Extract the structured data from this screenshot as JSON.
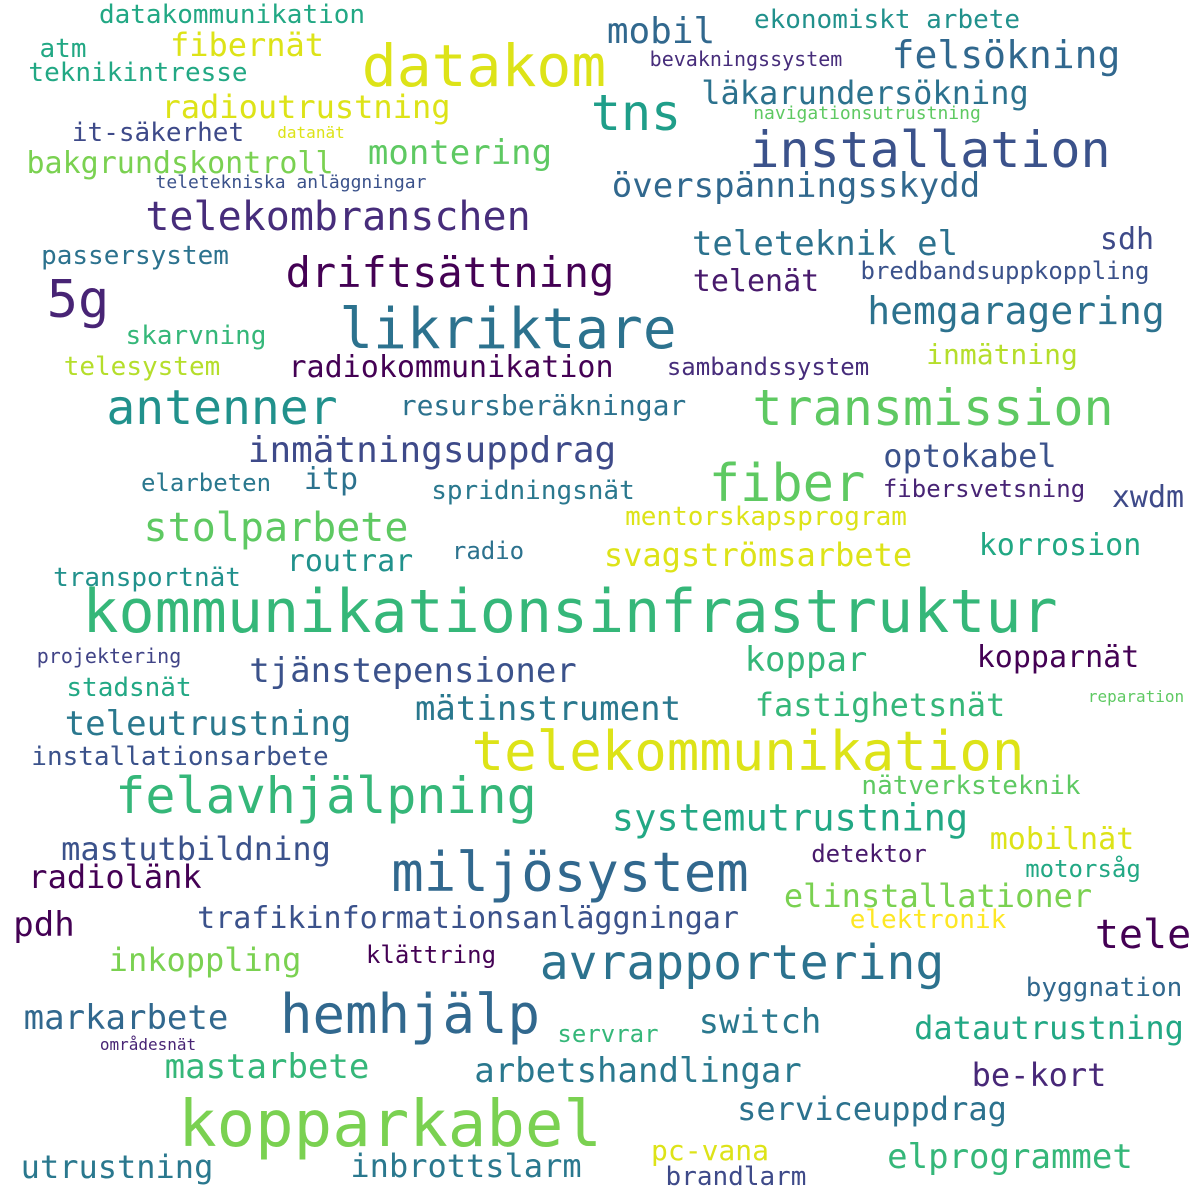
{
  "words": [
    {
      "text": "kommunikationsinfrastruktur",
      "color": "#35b779"
    },
    {
      "text": "kopparkabel",
      "color": "#7ad151"
    },
    {
      "text": "likriktare",
      "color": "#2c728e"
    },
    {
      "text": "telekommunikation",
      "color": "#dde318"
    },
    {
      "text": "datakom",
      "color": "#dde318"
    },
    {
      "text": "miljösystem",
      "color": "#31688e"
    },
    {
      "text": "felavhjälpning",
      "color": "#35b779"
    },
    {
      "text": "hemhjälp",
      "color": "#31688e"
    },
    {
      "text": "installation",
      "color": "#3b528b"
    },
    {
      "text": "transmission",
      "color": "#5ec962"
    },
    {
      "text": "antenner",
      "color": "#21918c"
    },
    {
      "text": "avrapportering",
      "color": "#2c728e"
    },
    {
      "text": "fiber",
      "color": "#5ec962"
    },
    {
      "text": "driftsättning",
      "color": "#440154"
    },
    {
      "text": "tns",
      "color": "#1f9e89"
    },
    {
      "text": "telekombranschen",
      "color": "#472d7b"
    },
    {
      "text": "5g",
      "color": "#482475"
    },
    {
      "text": "stolparbete",
      "color": "#5ec962"
    },
    {
      "text": "felsökning",
      "color": "#31688e"
    },
    {
      "text": "mobil",
      "color": "#31688e"
    },
    {
      "text": "tele",
      "color": "#440154"
    },
    {
      "text": "hemgaragering",
      "color": "#2c728e"
    },
    {
      "text": "systemutrustning",
      "color": "#22a884"
    },
    {
      "text": "inmätningsuppdrag",
      "color": "#3e4a89"
    },
    {
      "text": "överspänningsskydd",
      "color": "#31688e"
    },
    {
      "text": "tjänstepensioner",
      "color": "#3b528b"
    },
    {
      "text": "arbetshandlingar",
      "color": "#2a788e"
    },
    {
      "text": "elprogrammet",
      "color": "#35b779"
    },
    {
      "text": "teleutrustning",
      "color": "#2a788e"
    },
    {
      "text": "mätinstrument",
      "color": "#2a788e"
    },
    {
      "text": "montering",
      "color": "#5ec962"
    },
    {
      "text": "markarbete",
      "color": "#31688e"
    },
    {
      "text": "mastarbete",
      "color": "#35b779"
    },
    {
      "text": "trafikinformationsanläggningar",
      "color": "#3b528b"
    },
    {
      "text": "radioutrustning",
      "color": "#dde318"
    },
    {
      "text": "fibernät",
      "color": "#dde318"
    },
    {
      "text": "svagströmsarbete",
      "color": "#dde318"
    },
    {
      "text": "switch",
      "color": "#2a788e"
    },
    {
      "text": "inkoppling",
      "color": "#7ad151"
    },
    {
      "text": "elinstallationer",
      "color": "#7ad151"
    },
    {
      "text": "koppar",
      "color": "#35b779"
    },
    {
      "text": "serviceuppdrag",
      "color": "#2c728e"
    },
    {
      "text": "inbrottslarm",
      "color": "#2a788e"
    },
    {
      "text": "utrustning",
      "color": "#2a788e"
    },
    {
      "text": "datautrustning",
      "color": "#22a884"
    },
    {
      "text": "fastighetsnät",
      "color": "#35b779"
    },
    {
      "text": "radiokommunikation",
      "color": "#440154"
    },
    {
      "text": "resursberäkningar",
      "color": "#2c728e"
    },
    {
      "text": "teleteknik el",
      "color": "#2c728e"
    },
    {
      "text": "optokabel",
      "color": "#3b528b"
    },
    {
      "text": "korrosion",
      "color": "#22a884"
    },
    {
      "text": "kopparnät",
      "color": "#440154"
    },
    {
      "text": "mastutbildning",
      "color": "#3b528b"
    },
    {
      "text": "radiolänk",
      "color": "#440154"
    },
    {
      "text": "läkarundersökning",
      "color": "#2c728e"
    },
    {
      "text": "bakgrundskontroll",
      "color": "#7ad151"
    },
    {
      "text": "be-kort",
      "color": "#482878"
    },
    {
      "text": "mobilnät",
      "color": "#dde318"
    },
    {
      "text": "routrar",
      "color": "#21918c"
    },
    {
      "text": "xwdm",
      "color": "#3e4a89"
    },
    {
      "text": "pdh",
      "color": "#440154"
    },
    {
      "text": "pc-vana",
      "color": "#dde318"
    },
    {
      "text": "sdh",
      "color": "#3e4a89"
    },
    {
      "text": "telenät",
      "color": "#481a6c"
    },
    {
      "text": "itp",
      "color": "#2c728e"
    },
    {
      "text": "spridningsnät",
      "color": "#2a788e"
    },
    {
      "text": "mentorskapsprogram",
      "color": "#dde318"
    },
    {
      "text": "transportnät",
      "color": "#21918c"
    },
    {
      "text": "ekonomiskt arbete",
      "color": "#21918c"
    },
    {
      "text": "teknikintresse",
      "color": "#22a884"
    },
    {
      "text": "datakommunikation",
      "color": "#22a884"
    },
    {
      "text": "passersystem",
      "color": "#2c728e"
    },
    {
      "text": "skarvning",
      "color": "#35b779"
    },
    {
      "text": "telesystem",
      "color": "#b5de2b"
    },
    {
      "text": "inmätning",
      "color": "#b5de2b"
    },
    {
      "text": "installationsarbete",
      "color": "#3b528b"
    },
    {
      "text": "stadsnät",
      "color": "#22a884"
    },
    {
      "text": "it-säkerhet",
      "color": "#3e4a89"
    },
    {
      "text": "atm",
      "color": "#22a884"
    },
    {
      "text": "brandlarm",
      "color": "#3e4a89"
    },
    {
      "text": "byggnation",
      "color": "#31688e"
    },
    {
      "text": "elektronik",
      "color": "#fde725"
    },
    {
      "text": "nätverksteknik",
      "color": "#5ec962"
    },
    {
      "text": "bredbandsuppkoppling",
      "color": "#3b528b"
    },
    {
      "text": "sambandssystem",
      "color": "#472d7b"
    },
    {
      "text": "fibersvetsning",
      "color": "#482475"
    },
    {
      "text": "detektor",
      "color": "#481a6c"
    },
    {
      "text": "klättring",
      "color": "#440154"
    },
    {
      "text": "servrar",
      "color": "#35b779"
    },
    {
      "text": "elarbeten",
      "color": "#2a788e"
    },
    {
      "text": "radio",
      "color": "#2c728e"
    },
    {
      "text": "motorsåg",
      "color": "#22a884"
    },
    {
      "text": "bevakningssystem",
      "color": "#472d7b"
    },
    {
      "text": "projektering",
      "color": "#414487"
    },
    {
      "text": "teletekniska anläggningar",
      "color": "#3b528b"
    },
    {
      "text": "navigationsutrustning",
      "color": "#5ec962"
    },
    {
      "text": "datanät",
      "color": "#dde318"
    },
    {
      "text": "områdesnät",
      "color": "#482475"
    },
    {
      "text": "reparation",
      "color": "#5ec962"
    }
  ]
}
